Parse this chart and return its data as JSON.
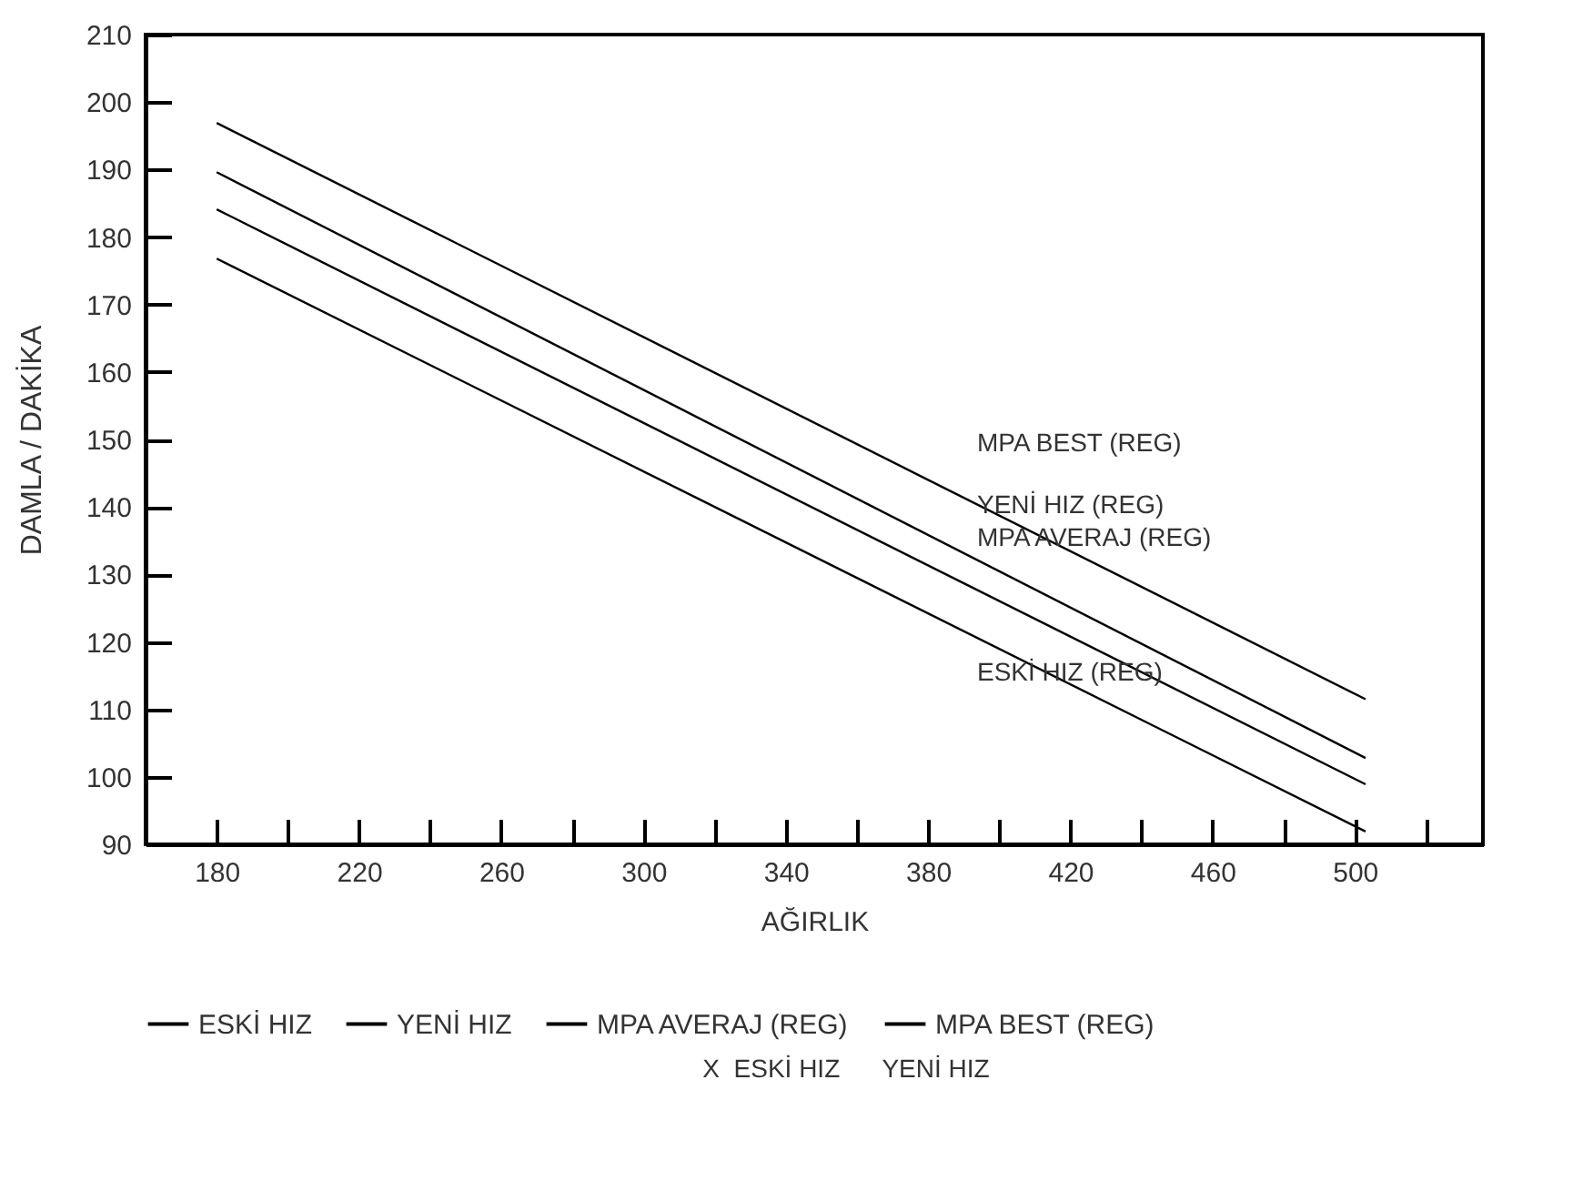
{
  "chart_data": {
    "type": "line",
    "xlabel": "AĞIRLIK",
    "ylabel": "DAMLA / DAKİKA",
    "x": [
      180,
      503
    ],
    "series": [
      {
        "name": "ESKİ HIZ",
        "color": "#000000",
        "values": [
          176.8,
          91.9
        ]
      },
      {
        "name": "YENİ HIZ",
        "color": "#000000",
        "values": [
          189.6,
          102.8
        ]
      },
      {
        "name": "MPA AVERAJ (REG)",
        "color": "#000000",
        "values": [
          184.1,
          98.9
        ]
      },
      {
        "name": "MPA BEST (REG)",
        "color": "#000000",
        "values": [
          196.9,
          111.5
        ]
      }
    ],
    "xlim": [
      160,
      536
    ],
    "xticks": [
      180,
      {
        "value": 200,
        "label": null
      },
      220,
      {
        "value": 240,
        "label": null
      },
      260,
      {
        "value": 280,
        "label": null
      },
      300,
      {
        "value": 320,
        "label": null
      },
      340,
      {
        "value": 360,
        "label": null
      },
      380,
      {
        "value": 400,
        "label": null
      },
      420,
      {
        "value": 440,
        "label": null
      },
      460,
      {
        "value": 480,
        "label": null
      },
      500,
      {
        "value": 520,
        "label": null
      }
    ],
    "ylim": [
      90,
      210
    ],
    "yticks": [
      90,
      100,
      110,
      120,
      130,
      140,
      150,
      160,
      170,
      180,
      190,
      200,
      210
    ],
    "annotations": [
      "MPA BEST (REG)",
      "YENİ HIZ (REG)",
      "MPA AVERAJ (REG)",
      "ESKİ HIZ (REG)",
      "X  ESKİ HIZ      YENİ HIZ"
    ],
    "grid": false,
    "legend": "bottom",
    "marker": "none",
    "line_style": "solid"
  }
}
